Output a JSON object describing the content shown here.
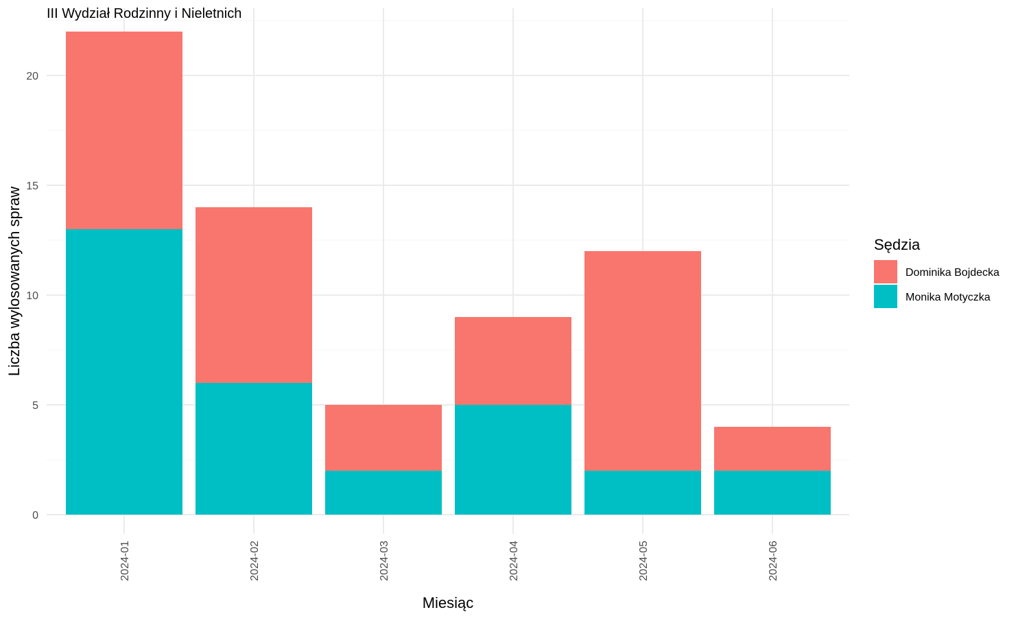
{
  "chart_data": {
    "type": "bar",
    "stacked": true,
    "title": "III Wydział Rodzinny i Nieletnich",
    "xlabel": "Miesiąc",
    "ylabel": "Liczba wylosowanych spraw",
    "categories": [
      "2024-01",
      "2024-02",
      "2024-03",
      "2024-04",
      "2024-05",
      "2024-06"
    ],
    "series": [
      {
        "name": "Monika Motyczka",
        "color": "#00BFC4",
        "values": [
          13,
          6,
          2,
          5,
          2,
          2
        ]
      },
      {
        "name": "Dominika Bojdecka",
        "color": "#F8766D",
        "values": [
          9,
          8,
          3,
          4,
          10,
          2
        ]
      }
    ],
    "ylim": [
      0,
      22
    ],
    "y_ticks": [
      0,
      5,
      10,
      15,
      20
    ],
    "grid": true,
    "legend": {
      "title": "Sędzia",
      "placement": "right",
      "order": [
        "Dominika Bojdecka",
        "Monika Motyczka"
      ]
    }
  }
}
